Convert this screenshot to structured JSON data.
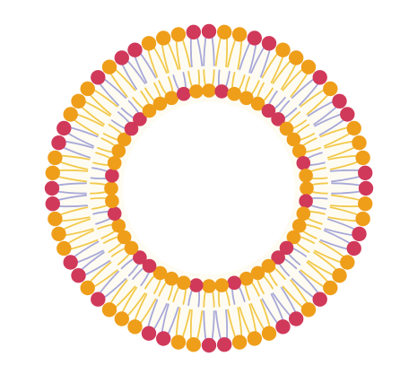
{
  "diagram": {
    "kind": "liposome-lipid-bilayer",
    "colors": {
      "background": "#ffffff",
      "core_fill": "#fefcf2",
      "tail_yellow": "#f2c94c",
      "tail_lavender": "#a8a8d8",
      "head_orange": "#ef9e1a",
      "head_crimson": "#d0395a"
    },
    "outer_leaflet": {
      "head_count": 64,
      "crimson_pattern": [
        1,
        0,
        0,
        1,
        1,
        0,
        0,
        0,
        1,
        0,
        1,
        1,
        0,
        0,
        0,
        1
      ]
    },
    "inner_leaflet": {
      "head_count": 48,
      "crimson_pattern": [
        0,
        1,
        0,
        0,
        0,
        1,
        1,
        0,
        0,
        0,
        1,
        0
      ]
    }
  }
}
